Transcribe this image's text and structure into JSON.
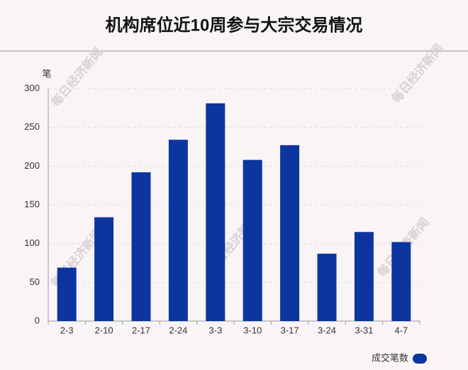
{
  "chart_data": {
    "type": "bar",
    "title": "机构席位近10周参与大宗交易情况",
    "y_label": "笔",
    "watermark": "每日经济新闻",
    "categories": [
      "2-3",
      "2-10",
      "2-17",
      "2-24",
      "3-3",
      "3-10",
      "3-17",
      "3-24",
      "3-31",
      "4-7"
    ],
    "series": [
      {
        "name": "成交笔数",
        "color": "#0c35a0",
        "values": [
          69,
          134,
          192,
          234,
          281,
          208,
          227,
          87,
          115,
          102
        ]
      }
    ],
    "ylim": [
      0,
      300
    ],
    "yticks": [
      0,
      50,
      100,
      150,
      200,
      250,
      300
    ],
    "grid": true,
    "legend": "bottom-right"
  }
}
